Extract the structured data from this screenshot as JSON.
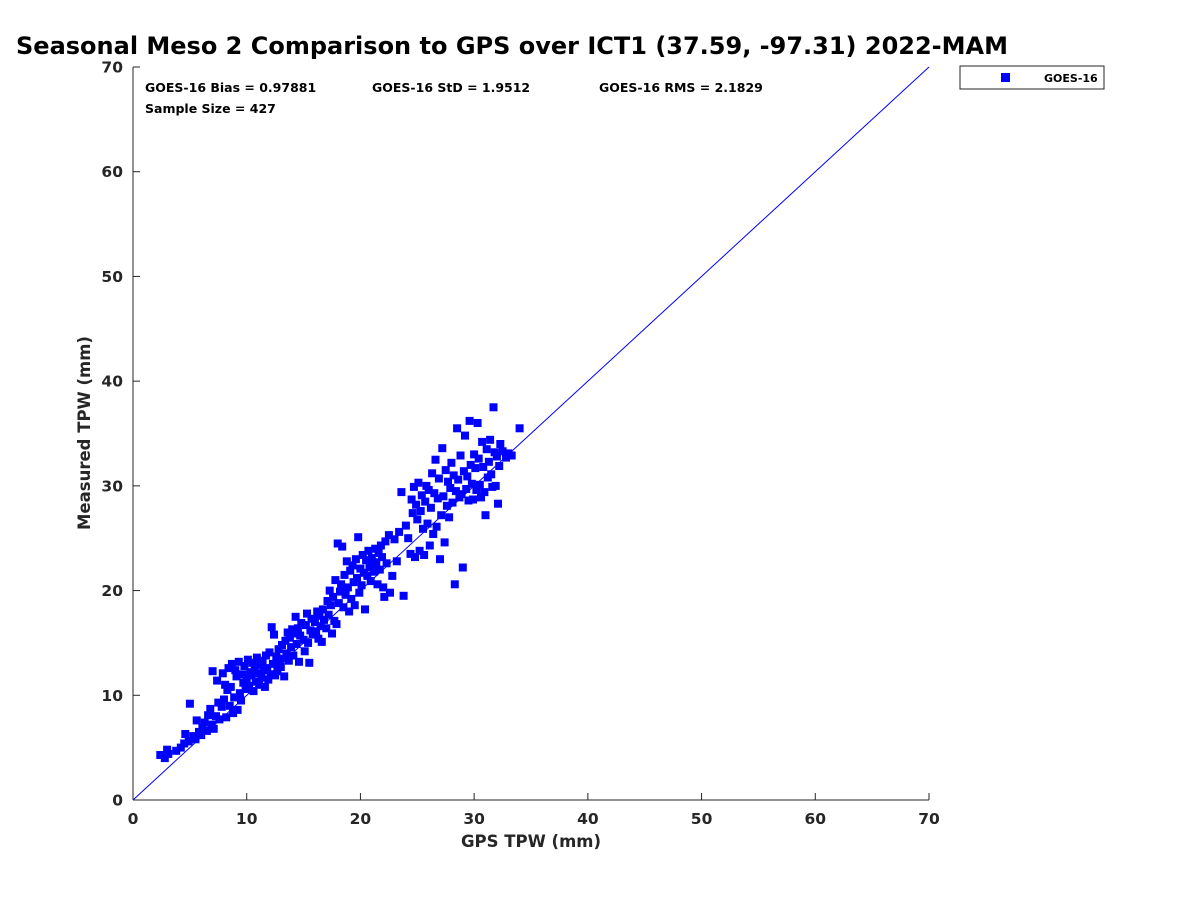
{
  "chart_data": {
    "type": "scatter",
    "title": "Seasonal Meso 2 Comparison to GPS over ICT1 (37.59, -97.31) 2022-MAM",
    "xlabel": "GPS TPW (mm)",
    "ylabel": "Measured TPW (mm)",
    "xlim": [
      0,
      70
    ],
    "ylim": [
      0,
      70
    ],
    "xticks": [
      "0",
      "10",
      "20",
      "30",
      "40",
      "50",
      "60",
      "70"
    ],
    "yticks": [
      "0",
      "10",
      "20",
      "30",
      "40",
      "50",
      "60",
      "70"
    ],
    "grid": false,
    "legend_position": "outside-top-right",
    "stats": {
      "bias": "GOES-16 Bias = 0.97881",
      "std": "GOES-16 StD = 1.9512",
      "rms": "GOES-16 RMS = 2.1829",
      "sample": "Sample Size = 427"
    },
    "reference_line": {
      "from": [
        0,
        0
      ],
      "to": [
        70,
        70
      ],
      "color": "#0000ff"
    },
    "series": [
      {
        "name": "GOES-16",
        "color": "#0000ff",
        "marker": "square",
        "points": [
          [
            2.4,
            4.3
          ],
          [
            2.8,
            4.0
          ],
          [
            3.0,
            4.8
          ],
          [
            3.1,
            4.4
          ],
          [
            3.8,
            4.7
          ],
          [
            4.2,
            5.0
          ],
          [
            4.5,
            5.4
          ],
          [
            4.6,
            6.3
          ],
          [
            4.9,
            5.6
          ],
          [
            5.0,
            9.2
          ],
          [
            5.3,
            6.1
          ],
          [
            5.5,
            5.8
          ],
          [
            5.6,
            7.6
          ],
          [
            5.8,
            6.5
          ],
          [
            6.0,
            6.2
          ],
          [
            6.1,
            6.9
          ],
          [
            6.3,
            7.4
          ],
          [
            6.5,
            6.6
          ],
          [
            6.6,
            8.1
          ],
          [
            6.8,
            8.7
          ],
          [
            6.9,
            7.2
          ],
          [
            7.0,
            12.3
          ],
          [
            7.1,
            6.8
          ],
          [
            7.3,
            8.0
          ],
          [
            7.4,
            11.4
          ],
          [
            7.5,
            9.3
          ],
          [
            7.6,
            7.7
          ],
          [
            7.8,
            8.9
          ],
          [
            7.9,
            12.1
          ],
          [
            8.0,
            9.6
          ],
          [
            8.1,
            11.0
          ],
          [
            8.2,
            7.9
          ],
          [
            8.3,
            10.5
          ],
          [
            8.4,
            12.6
          ],
          [
            8.5,
            9.0
          ],
          [
            8.6,
            10.8
          ],
          [
            8.7,
            13.0
          ],
          [
            8.8,
            8.3
          ],
          [
            8.9,
            9.8
          ],
          [
            9.0,
            12.4
          ],
          [
            9.1,
            11.8
          ],
          [
            9.2,
            8.6
          ],
          [
            9.3,
            13.2
          ],
          [
            9.4,
            10.2
          ],
          [
            9.5,
            9.5
          ],
          [
            9.6,
            12.0
          ],
          [
            9.7,
            11.2
          ],
          [
            9.8,
            12.8
          ],
          [
            9.9,
            10.6
          ],
          [
            10.0,
            11.6
          ],
          [
            10.1,
            13.4
          ],
          [
            10.2,
            10.9
          ],
          [
            10.3,
            12.2
          ],
          [
            10.4,
            11.9
          ],
          [
            10.5,
            13.1
          ],
          [
            10.6,
            10.4
          ],
          [
            10.7,
            12.7
          ],
          [
            10.8,
            11.3
          ],
          [
            10.9,
            13.6
          ],
          [
            11.0,
            12.1
          ],
          [
            11.1,
            11.0
          ],
          [
            11.2,
            12.9
          ],
          [
            11.3,
            11.7
          ],
          [
            11.4,
            13.3
          ],
          [
            11.5,
            12.4
          ],
          [
            11.6,
            10.8
          ],
          [
            11.7,
            13.8
          ],
          [
            11.8,
            12.6
          ],
          [
            11.9,
            11.5
          ],
          [
            12.0,
            14.1
          ],
          [
            12.1,
            12.0
          ],
          [
            12.2,
            16.5
          ],
          [
            12.3,
            13.0
          ],
          [
            12.4,
            15.8
          ],
          [
            12.5,
            11.9
          ],
          [
            12.6,
            13.7
          ],
          [
            12.7,
            12.3
          ],
          [
            12.8,
            14.4
          ],
          [
            12.9,
            13.1
          ],
          [
            13.0,
            12.7
          ],
          [
            13.1,
            14.8
          ],
          [
            13.2,
            13.5
          ],
          [
            13.3,
            11.8
          ],
          [
            13.4,
            15.2
          ],
          [
            13.5,
            14.0
          ],
          [
            13.6,
            16.0
          ],
          [
            13.7,
            13.3
          ],
          [
            13.8,
            15.5
          ],
          [
            13.9,
            14.6
          ],
          [
            14.0,
            16.3
          ],
          [
            14.1,
            13.8
          ],
          [
            14.2,
            15.9
          ],
          [
            14.3,
            17.5
          ],
          [
            14.4,
            14.9
          ],
          [
            14.5,
            16.4
          ],
          [
            14.6,
            13.2
          ],
          [
            14.7,
            15.7
          ],
          [
            14.8,
            16.9
          ],
          [
            15.0,
            15.3
          ],
          [
            15.1,
            14.2
          ],
          [
            15.2,
            16.7
          ],
          [
            15.3,
            17.8
          ],
          [
            15.4,
            15.0
          ],
          [
            15.5,
            13.1
          ],
          [
            15.6,
            16.2
          ],
          [
            15.7,
            17.3
          ],
          [
            15.8,
            15.8
          ],
          [
            16.0,
            17.0
          ],
          [
            16.1,
            16.1
          ],
          [
            16.2,
            18.0
          ],
          [
            16.3,
            15.4
          ],
          [
            16.4,
            17.6
          ],
          [
            16.5,
            16.6
          ],
          [
            16.6,
            15.1
          ],
          [
            16.7,
            18.2
          ],
          [
            16.8,
            17.2
          ],
          [
            17.0,
            16.4
          ],
          [
            17.1,
            19.0
          ],
          [
            17.2,
            17.7
          ],
          [
            17.3,
            20.0
          ],
          [
            17.4,
            18.6
          ],
          [
            17.5,
            15.9
          ],
          [
            17.6,
            19.4
          ],
          [
            17.7,
            17.1
          ],
          [
            17.8,
            21.0
          ],
          [
            17.9,
            16.8
          ],
          [
            18.0,
            24.5
          ],
          [
            18.1,
            18.8
          ],
          [
            18.2,
            19.9
          ],
          [
            18.3,
            20.6
          ],
          [
            18.4,
            24.2
          ],
          [
            18.5,
            18.4
          ],
          [
            18.6,
            21.5
          ],
          [
            18.7,
            19.6
          ],
          [
            18.8,
            22.8
          ],
          [
            18.9,
            20.3
          ],
          [
            19.0,
            18.0
          ],
          [
            19.1,
            21.9
          ],
          [
            19.2,
            19.2
          ],
          [
            19.3,
            22.4
          ],
          [
            19.4,
            20.8
          ],
          [
            19.5,
            18.6
          ],
          [
            19.6,
            23.0
          ],
          [
            19.7,
            21.2
          ],
          [
            19.8,
            25.1
          ],
          [
            19.9,
            19.8
          ],
          [
            20.0,
            22.1
          ],
          [
            20.1,
            20.5
          ],
          [
            20.2,
            23.4
          ],
          [
            20.3,
            21.7
          ],
          [
            20.4,
            18.2
          ],
          [
            20.5,
            22.9
          ],
          [
            20.6,
            21.4
          ],
          [
            20.7,
            23.8
          ],
          [
            20.8,
            22.2
          ],
          [
            20.9,
            20.9
          ],
          [
            21.0,
            23.1
          ],
          [
            21.1,
            22.5
          ],
          [
            21.2,
            21.8
          ],
          [
            21.3,
            24.0
          ],
          [
            21.4,
            22.7
          ],
          [
            21.5,
            20.6
          ],
          [
            21.6,
            23.6
          ],
          [
            21.7,
            22.0
          ],
          [
            21.8,
            24.3
          ],
          [
            21.9,
            23.2
          ],
          [
            22.0,
            20.3
          ],
          [
            22.1,
            19.4
          ],
          [
            22.2,
            24.7
          ],
          [
            22.3,
            22.6
          ],
          [
            22.5,
            25.3
          ],
          [
            22.6,
            19.8
          ],
          [
            22.8,
            21.4
          ],
          [
            23.0,
            24.9
          ],
          [
            23.2,
            22.8
          ],
          [
            23.4,
            25.6
          ],
          [
            23.6,
            29.4
          ],
          [
            23.8,
            19.5
          ],
          [
            24.0,
            26.2
          ],
          [
            24.2,
            25.0
          ],
          [
            24.4,
            23.5
          ],
          [
            24.5,
            28.7
          ],
          [
            24.6,
            27.4
          ],
          [
            24.7,
            29.9
          ],
          [
            24.8,
            23.2
          ],
          [
            24.9,
            28.2
          ],
          [
            25.0,
            26.8
          ],
          [
            25.1,
            30.3
          ],
          [
            25.2,
            23.8
          ],
          [
            25.3,
            27.6
          ],
          [
            25.4,
            29.1
          ],
          [
            25.5,
            25.9
          ],
          [
            25.6,
            23.4
          ],
          [
            25.7,
            28.5
          ],
          [
            25.8,
            30.0
          ],
          [
            25.9,
            26.4
          ],
          [
            26.0,
            29.6
          ],
          [
            26.1,
            24.3
          ],
          [
            26.2,
            27.9
          ],
          [
            26.3,
            31.2
          ],
          [
            26.4,
            25.4
          ],
          [
            26.5,
            29.3
          ],
          [
            26.6,
            32.5
          ],
          [
            26.7,
            26.1
          ],
          [
            26.8,
            28.8
          ],
          [
            26.9,
            30.7
          ],
          [
            27.0,
            23.0
          ],
          [
            27.1,
            27.2
          ],
          [
            27.2,
            33.6
          ],
          [
            27.3,
            29.0
          ],
          [
            27.4,
            24.6
          ],
          [
            27.5,
            31.5
          ],
          [
            27.6,
            28.1
          ],
          [
            27.7,
            30.4
          ],
          [
            27.8,
            27.0
          ],
          [
            27.9,
            29.8
          ],
          [
            28.0,
            32.2
          ],
          [
            28.1,
            28.4
          ],
          [
            28.2,
            31.0
          ],
          [
            28.3,
            20.6
          ],
          [
            28.4,
            29.5
          ],
          [
            28.5,
            35.5
          ],
          [
            28.6,
            30.6
          ],
          [
            28.7,
            28.9
          ],
          [
            28.8,
            32.9
          ],
          [
            28.9,
            29.2
          ],
          [
            29.0,
            22.2
          ],
          [
            29.1,
            31.4
          ],
          [
            29.2,
            34.8
          ],
          [
            29.3,
            29.7
          ],
          [
            29.4,
            30.9
          ],
          [
            29.5,
            28.6
          ],
          [
            29.6,
            36.2
          ],
          [
            29.7,
            32.0
          ],
          [
            29.8,
            30.2
          ],
          [
            29.9,
            28.7
          ],
          [
            30.0,
            33.0
          ],
          [
            30.1,
            31.7
          ],
          [
            30.2,
            29.6
          ],
          [
            30.3,
            36.0
          ],
          [
            30.4,
            32.6
          ],
          [
            30.5,
            30.1
          ],
          [
            30.6,
            28.9
          ],
          [
            30.7,
            34.2
          ],
          [
            30.8,
            31.8
          ],
          [
            30.9,
            29.4
          ],
          [
            31.0,
            27.2
          ],
          [
            31.1,
            33.5
          ],
          [
            31.2,
            30.8
          ],
          [
            31.3,
            32.3
          ],
          [
            31.4,
            34.4
          ],
          [
            31.5,
            31.1
          ],
          [
            31.6,
            29.9
          ],
          [
            31.7,
            37.5
          ],
          [
            31.8,
            33.2
          ],
          [
            31.9,
            30.0
          ],
          [
            32.0,
            32.8
          ],
          [
            32.1,
            28.3
          ],
          [
            32.2,
            31.9
          ],
          [
            32.3,
            34.0
          ],
          [
            32.5,
            33.3
          ],
          [
            32.8,
            32.7
          ],
          [
            33.0,
            33.1
          ],
          [
            33.3,
            32.9
          ],
          [
            34.0,
            35.5
          ]
        ]
      }
    ]
  }
}
